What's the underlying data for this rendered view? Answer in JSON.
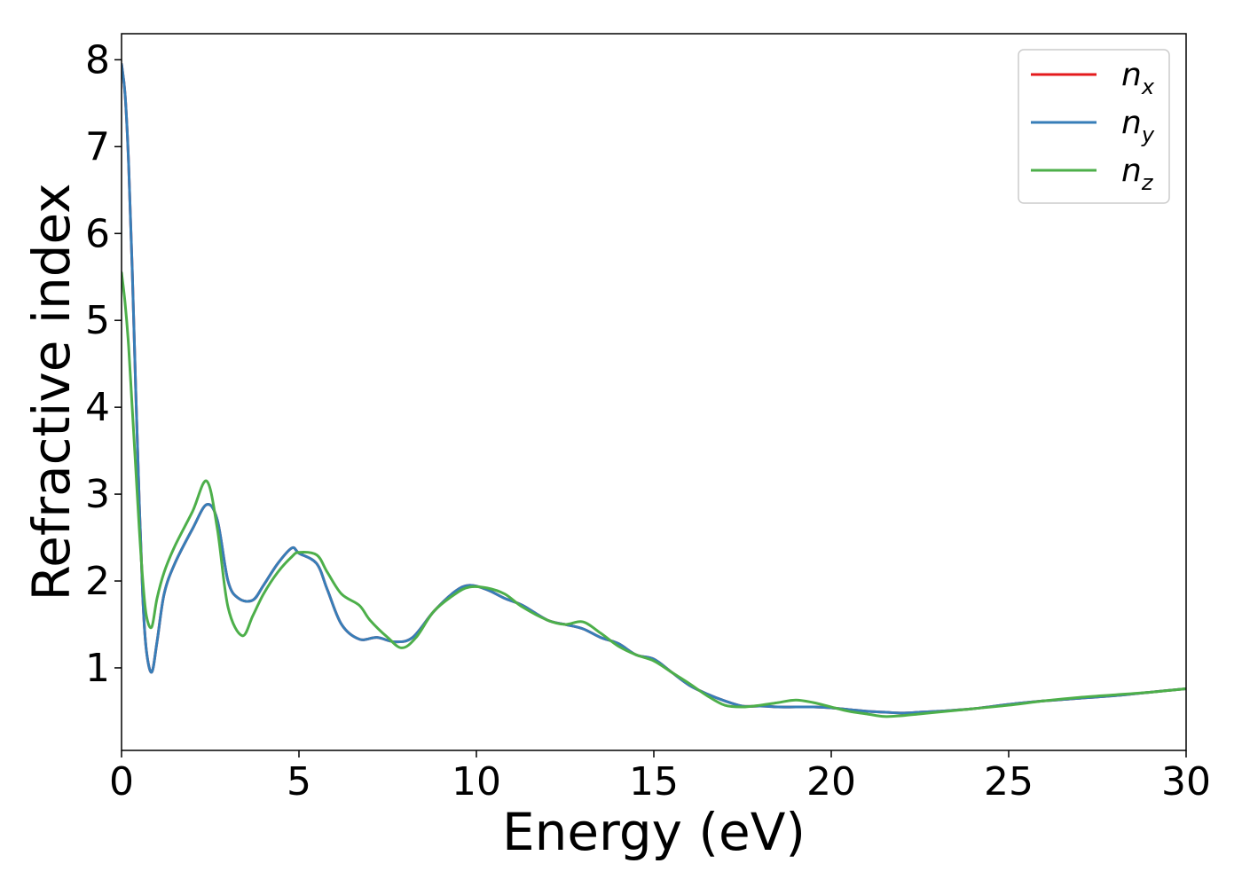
{
  "chart_data": {
    "type": "line",
    "title": "",
    "xlabel": "Energy (eV)",
    "ylabel": "Refractive index",
    "xlim": [
      0,
      30
    ],
    "ylim": [
      0.05,
      8.3
    ],
    "xticks": [
      0,
      5,
      10,
      15,
      20,
      25,
      30
    ],
    "yticks": [
      1,
      2,
      3,
      4,
      5,
      6,
      7,
      8
    ],
    "grid": false,
    "legend_position": "top-right",
    "series": [
      {
        "name": "n",
        "subscript": "x",
        "color": "#e41a1c",
        "x": [
          0,
          0.1,
          0.2,
          0.3,
          0.4,
          0.5,
          0.6,
          0.7,
          0.85,
          1.0,
          1.2,
          1.5,
          2.0,
          2.4,
          2.7,
          3.0,
          3.3,
          3.7,
          4.0,
          4.4,
          4.8,
          5.0,
          5.5,
          5.8,
          6.2,
          6.7,
          7.2,
          7.7,
          8.2,
          8.8,
          9.4,
          9.8,
          10.3,
          10.8,
          11.3,
          12.0,
          12.5,
          13.0,
          13.5,
          14.0,
          14.5,
          15.0,
          15.5,
          16.0,
          16.5,
          17.0,
          17.5,
          18.0,
          18.5,
          19.0,
          19.5,
          20.0,
          20.5,
          21.0,
          21.5,
          22.0,
          22.5,
          23.0,
          24.0,
          25.0,
          26.0,
          27.0,
          28.0,
          29.0,
          30.0
        ],
        "values": [
          7.95,
          7.6,
          6.8,
          5.6,
          4.2,
          2.9,
          1.8,
          1.2,
          0.95,
          1.3,
          1.85,
          2.2,
          2.6,
          2.88,
          2.7,
          2.0,
          1.8,
          1.78,
          1.95,
          2.2,
          2.38,
          2.32,
          2.2,
          1.9,
          1.5,
          1.33,
          1.35,
          1.3,
          1.35,
          1.65,
          1.88,
          1.95,
          1.9,
          1.8,
          1.72,
          1.55,
          1.5,
          1.45,
          1.35,
          1.28,
          1.15,
          1.1,
          0.95,
          0.8,
          0.7,
          0.62,
          0.56,
          0.56,
          0.55,
          0.55,
          0.55,
          0.54,
          0.52,
          0.5,
          0.49,
          0.48,
          0.49,
          0.5,
          0.53,
          0.58,
          0.62,
          0.65,
          0.68,
          0.72,
          0.76
        ]
      },
      {
        "name": "n",
        "subscript": "y",
        "color": "#377eb8",
        "x": [
          0,
          0.1,
          0.2,
          0.3,
          0.4,
          0.5,
          0.6,
          0.7,
          0.85,
          1.0,
          1.2,
          1.5,
          2.0,
          2.4,
          2.7,
          3.0,
          3.3,
          3.7,
          4.0,
          4.4,
          4.8,
          5.0,
          5.5,
          5.8,
          6.2,
          6.7,
          7.2,
          7.7,
          8.2,
          8.8,
          9.4,
          9.8,
          10.3,
          10.8,
          11.3,
          12.0,
          12.5,
          13.0,
          13.5,
          14.0,
          14.5,
          15.0,
          15.5,
          16.0,
          16.5,
          17.0,
          17.5,
          18.0,
          18.5,
          19.0,
          19.5,
          20.0,
          20.5,
          21.0,
          21.5,
          22.0,
          22.5,
          23.0,
          24.0,
          25.0,
          26.0,
          27.0,
          28.0,
          29.0,
          30.0
        ],
        "values": [
          7.95,
          7.6,
          6.8,
          5.6,
          4.2,
          2.9,
          1.8,
          1.2,
          0.95,
          1.3,
          1.85,
          2.2,
          2.6,
          2.88,
          2.7,
          2.0,
          1.8,
          1.78,
          1.95,
          2.2,
          2.38,
          2.32,
          2.2,
          1.9,
          1.5,
          1.33,
          1.35,
          1.3,
          1.35,
          1.65,
          1.88,
          1.95,
          1.9,
          1.8,
          1.72,
          1.55,
          1.5,
          1.45,
          1.35,
          1.28,
          1.15,
          1.1,
          0.95,
          0.8,
          0.7,
          0.62,
          0.56,
          0.56,
          0.55,
          0.55,
          0.55,
          0.54,
          0.52,
          0.5,
          0.49,
          0.48,
          0.49,
          0.5,
          0.53,
          0.58,
          0.62,
          0.65,
          0.68,
          0.72,
          0.76
        ]
      },
      {
        "name": "n",
        "subscript": "z",
        "color": "#4daf4a",
        "x": [
          0,
          0.1,
          0.2,
          0.3,
          0.4,
          0.5,
          0.6,
          0.7,
          0.85,
          1.0,
          1.2,
          1.5,
          2.0,
          2.4,
          2.7,
          3.0,
          3.4,
          3.7,
          4.0,
          4.4,
          4.8,
          5.0,
          5.5,
          5.8,
          6.2,
          6.7,
          7.0,
          7.5,
          7.9,
          8.3,
          8.8,
          9.4,
          9.8,
          10.3,
          10.8,
          11.3,
          12.0,
          12.5,
          13.0,
          13.5,
          14.0,
          14.5,
          15.0,
          15.5,
          16.0,
          16.5,
          17.0,
          17.5,
          18.0,
          18.5,
          19.0,
          19.5,
          20.0,
          20.5,
          21.0,
          21.5,
          22.0,
          22.5,
          23.0,
          24.0,
          25.0,
          26.0,
          27.0,
          28.0,
          29.0,
          30.0
        ],
        "values": [
          5.55,
          5.2,
          4.7,
          4.0,
          3.3,
          2.6,
          2.0,
          1.6,
          1.47,
          1.8,
          2.1,
          2.4,
          2.8,
          3.15,
          2.6,
          1.7,
          1.37,
          1.6,
          1.85,
          2.1,
          2.28,
          2.33,
          2.3,
          2.1,
          1.85,
          1.72,
          1.55,
          1.35,
          1.23,
          1.35,
          1.65,
          1.85,
          1.93,
          1.92,
          1.85,
          1.7,
          1.55,
          1.5,
          1.53,
          1.4,
          1.25,
          1.15,
          1.08,
          0.95,
          0.82,
          0.68,
          0.57,
          0.55,
          0.57,
          0.6,
          0.63,
          0.6,
          0.55,
          0.5,
          0.47,
          0.44,
          0.45,
          0.47,
          0.49,
          0.53,
          0.57,
          0.62,
          0.66,
          0.69,
          0.72,
          0.76
        ]
      }
    ]
  }
}
